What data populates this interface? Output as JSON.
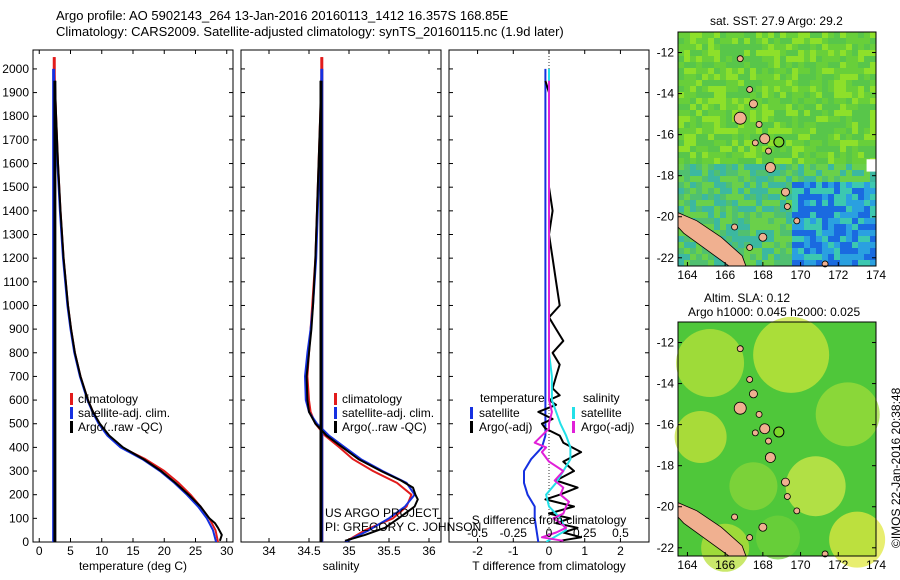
{
  "header": {
    "title_line1": "Argo profile: AO 5902143_264 13-Jan-2016 20160113_1412 16.357S 168.85E",
    "title_line2": "Climatology: CARS2009. Satellite-adjusted climatology: synTS_20160115.nc (1.9d later)"
  },
  "credits": {
    "line1": "US ARGO PROJECT",
    "line2": "PI: GREGORY C. JOHNSON",
    "stamp": "©IMOS 22-Jan-2016 20:38:48"
  },
  "colors": {
    "climatology": "#e21b1b",
    "satellite": "#1530e0",
    "argo": "#000000",
    "sat_salinity": "#22e0e8",
    "argo_salinity": "#e020d8"
  },
  "legends": {
    "temp": [
      "climatology",
      "satellite-adj. clim.",
      "Argo(..raw -QC)"
    ],
    "sal": [
      "climatology",
      "satellite-adj. clim.",
      "Argo(..raw -QC)"
    ],
    "diff_headers": [
      "temperature",
      "salinity"
    ],
    "diff_temp": [
      "satellite",
      "Argo(-adj)"
    ],
    "diff_sal": [
      "satellite",
      "Argo(-adj)"
    ]
  },
  "maps": {
    "sst_title": "sat. SST: 27.9 Argo: 29.2",
    "sla_title_line1": "Altim. SLA: 0.12",
    "sla_title_line2": "Argo h1000: 0.045 h2000: 0.025",
    "lon_ticks": [
      "164",
      "166",
      "168",
      "170",
      "172",
      "174"
    ],
    "lat_ticks": [
      "-12",
      "-14",
      "-16",
      "-18",
      "-20",
      "-22"
    ],
    "lon_range": [
      163.5,
      174
    ],
    "lat_range": [
      -11,
      -22.4
    ],
    "float_position": {
      "lon": 168.85,
      "lat": -16.357
    }
  },
  "chart_data": [
    {
      "type": "line",
      "id": "temperature",
      "xlabel": "temperature (deg C)",
      "ylabel": "",
      "xlim": [
        -1,
        31
      ],
      "ylim": [
        2080,
        0
      ],
      "xticks": [
        0,
        5,
        10,
        15,
        20,
        25,
        30
      ],
      "xtick_labels": [
        "0",
        "5",
        "10",
        "15",
        "20",
        "25",
        "30"
      ],
      "yticks": [
        0,
        100,
        200,
        300,
        400,
        500,
        600,
        700,
        800,
        900,
        1000,
        1100,
        1200,
        1300,
        1400,
        1500,
        1600,
        1700,
        1800,
        1900,
        2000
      ],
      "ytick_labels": [
        "0",
        "100",
        "200",
        "300",
        "400",
        "500",
        "600",
        "700",
        "800",
        "900",
        "1000",
        "1100",
        "1200",
        "1300",
        "1400",
        "1500",
        "1600",
        "1700",
        "1800",
        "1900",
        "2000"
      ],
      "series": [
        {
          "name": "climatology",
          "depth": [
            0,
            50,
            100,
            150,
            200,
            250,
            300,
            350,
            400,
            450,
            500,
            550,
            600,
            700,
            800,
            900,
            1000,
            1200,
            1400,
            1600,
            1800,
            2000,
            2050
          ],
          "values": [
            28.6,
            28.2,
            27.2,
            25.8,
            24.2,
            22.3,
            20.0,
            17.0,
            13.2,
            11.0,
            9.6,
            8.6,
            7.8,
            6.6,
            5.7,
            5.1,
            4.6,
            3.9,
            3.4,
            3.0,
            2.7,
            2.4,
            2.4
          ]
        },
        {
          "name": "satellite-adj. clim.",
          "depth": [
            0,
            50,
            100,
            150,
            200,
            250,
            300,
            350,
            400,
            450,
            500,
            550,
            600,
            700,
            800,
            900,
            1000,
            1200,
            1400,
            1600,
            1800,
            2000
          ],
          "values": [
            28.3,
            27.8,
            26.8,
            25.4,
            23.6,
            21.6,
            19.3,
            16.5,
            13.0,
            10.9,
            9.5,
            8.5,
            7.7,
            6.5,
            5.6,
            5.0,
            4.5,
            3.8,
            3.3,
            2.9,
            2.6,
            2.3
          ]
        },
        {
          "name": "Argo(..raw -QC)",
          "depth": [
            5,
            30,
            60,
            80,
            100,
            150,
            200,
            250,
            300,
            350,
            400,
            450,
            500,
            550,
            600,
            700,
            800,
            900,
            1000,
            1200,
            1400,
            1600,
            1800,
            1950
          ],
          "values": [
            28.9,
            29.2,
            28.6,
            28.1,
            27.2,
            25.8,
            23.9,
            21.8,
            19.5,
            16.7,
            13.4,
            11.2,
            9.7,
            8.6,
            7.8,
            6.6,
            5.7,
            5.1,
            4.6,
            3.9,
            3.4,
            3.0,
            2.7,
            2.5
          ]
        }
      ]
    },
    {
      "type": "line",
      "id": "salinity",
      "xlabel": "salinity",
      "xlim": [
        33.65,
        36.15
      ],
      "ylim": [
        2080,
        0
      ],
      "xticks": [
        34,
        34.5,
        35,
        35.5,
        36
      ],
      "xtick_labels": [
        "34",
        "34.5",
        "35",
        "35.5",
        "36"
      ],
      "series": [
        {
          "name": "climatology",
          "depth": [
            0,
            50,
            100,
            150,
            200,
            250,
            300,
            350,
            400,
            450,
            500,
            550,
            600,
            700,
            800,
            900,
            1000,
            1200,
            1400,
            1600,
            1800,
            2000,
            2050
          ],
          "values": [
            34.95,
            35.2,
            35.55,
            35.72,
            35.78,
            35.6,
            35.3,
            35.05,
            34.88,
            34.7,
            34.58,
            34.52,
            34.5,
            34.48,
            34.5,
            34.52,
            34.54,
            34.58,
            34.6,
            34.62,
            34.64,
            34.66,
            34.66
          ]
        },
        {
          "name": "satellite-adj. clim.",
          "depth": [
            0,
            50,
            100,
            150,
            200,
            250,
            300,
            350,
            400,
            450,
            500,
            550,
            600,
            700,
            800,
            900,
            1000,
            1200,
            1400,
            1600,
            1800,
            2000
          ],
          "values": [
            34.95,
            35.25,
            35.5,
            35.7,
            35.82,
            35.72,
            35.42,
            35.15,
            34.95,
            34.75,
            34.6,
            34.5,
            34.46,
            34.45,
            34.48,
            34.52,
            34.55,
            34.59,
            34.61,
            34.63,
            34.65,
            34.66
          ]
        },
        {
          "name": "Argo(..raw -QC)",
          "depth": [
            5,
            30,
            60,
            100,
            150,
            180,
            200,
            230,
            260,
            300,
            350,
            400,
            450,
            500,
            550,
            600,
            700,
            800,
            900,
            1000,
            1200,
            1400,
            1600,
            1800,
            1950
          ],
          "values": [
            34.95,
            35.2,
            35.45,
            35.62,
            35.82,
            35.86,
            35.83,
            35.8,
            35.65,
            35.4,
            35.12,
            34.92,
            34.72,
            34.58,
            34.5,
            34.48,
            34.47,
            34.5,
            34.53,
            34.55,
            34.58,
            34.6,
            34.62,
            34.64,
            34.65
          ]
        }
      ]
    },
    {
      "type": "line",
      "id": "difference",
      "xlabel": "T difference from climatology",
      "xlabel_top": "S difference from climatology",
      "xlim": [
        -2.8,
        2.8
      ],
      "ylim": [
        2080,
        0
      ],
      "xticks": [
        -2,
        -1,
        0,
        1,
        2
      ],
      "xtick_labels": [
        "-2",
        "-1",
        "0",
        "1",
        "2"
      ],
      "sal_xticks": [
        -0.5,
        -0.25,
        0,
        0.25,
        0.5
      ],
      "sal_xtick_labels": [
        "-0.5",
        "-0.25",
        "0",
        "0.25",
        "0.5"
      ],
      "sal_scale": 4,
      "series": [
        {
          "name": "temperature satellite",
          "depth": [
            0,
            50,
            100,
            150,
            200,
            250,
            300,
            350,
            400,
            450,
            500,
            550,
            600,
            700,
            800,
            900,
            1000,
            1200,
            1400,
            1600,
            1800,
            2000
          ],
          "values": [
            -0.3,
            -0.35,
            -0.4,
            -0.4,
            -0.6,
            -0.7,
            -0.7,
            -0.5,
            -0.2,
            -0.1,
            -0.1,
            -0.1,
            -0.1,
            -0.1,
            -0.1,
            -0.1,
            -0.1,
            -0.1,
            -0.1,
            -0.1,
            -0.1,
            -0.1
          ]
        },
        {
          "name": "temperature Argo(-adj)",
          "depth": [
            5,
            20,
            40,
            60,
            80,
            100,
            120,
            150,
            180,
            200,
            230,
            260,
            300,
            340,
            380,
            420,
            450,
            480,
            500,
            520,
            550,
            580,
            600,
            620,
            650,
            700,
            750,
            800,
            850,
            900,
            950,
            1000,
            1100,
            1200,
            1300,
            1400,
            1500,
            1600,
            1700,
            1800,
            1900,
            1950
          ],
          "values": [
            0.3,
            0.9,
            0.4,
            0.8,
            0.2,
            0.6,
            0.0,
            0.7,
            -0.1,
            0.3,
            0.8,
            0.2,
            0.7,
            0.4,
            0.9,
            0.4,
            0.3,
            -0.1,
            -0.2,
            0.1,
            -0.3,
            0.2,
            0.0,
            0.3,
            0.1,
            0.2,
            0.3,
            0.1,
            0.4,
            0.2,
            0.0,
            0.3,
            0.2,
            0.1,
            0.0,
            0.1,
            0.0,
            0.0,
            0.0,
            0.0,
            0.0,
            -0.1
          ]
        },
        {
          "name": "salinity satellite",
          "depth": [
            0,
            50,
            100,
            150,
            200,
            250,
            300,
            350,
            400,
            450,
            500,
            600,
            700,
            800,
            900,
            1000,
            1200,
            1400,
            1600,
            1800,
            2000
          ],
          "values": [
            -0.02,
            0.12,
            0.08,
            0.0,
            -0.02,
            0.05,
            0.1,
            0.15,
            0.15,
            0.12,
            0.08,
            0.02,
            0.02,
            0.0,
            0.0,
            0.0,
            0.0,
            0.0,
            0.0,
            0.0,
            0.0
          ]
        },
        {
          "name": "salinity Argo(-adj)",
          "depth": [
            5,
            20,
            40,
            60,
            80,
            100,
            120,
            150,
            170,
            200,
            230,
            260,
            300,
            340,
            380,
            400,
            420,
            450,
            480,
            500,
            550,
            600,
            700,
            800,
            1000,
            1200,
            1400,
            1600,
            1800,
            1950
          ],
          "values": [
            0.1,
            -0.05,
            0.05,
            0.12,
            0.08,
            0.03,
            0.1,
            0.12,
            0.14,
            0.08,
            0.1,
            0.04,
            0.1,
            0.0,
            -0.05,
            -0.02,
            -0.1,
            -0.05,
            0.0,
            0.0,
            0.02,
            0.0,
            0.0,
            0.0,
            0.0,
            0.0,
            0.0,
            0.0,
            0.0,
            0.0
          ]
        }
      ]
    }
  ]
}
